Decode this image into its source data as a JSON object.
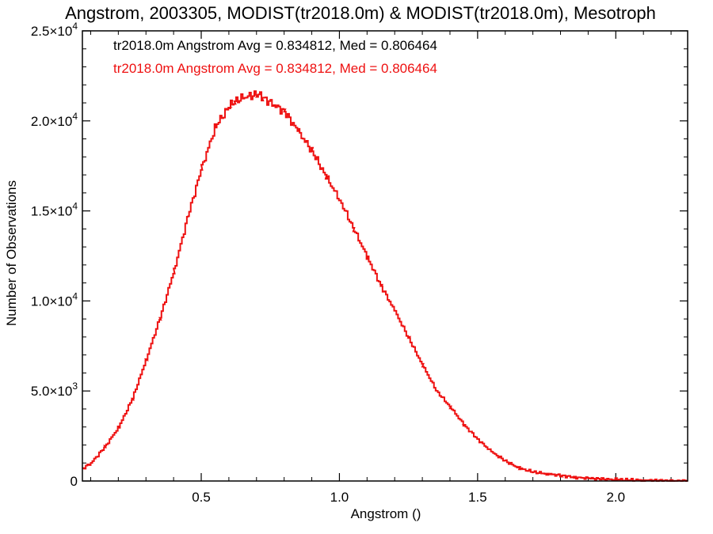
{
  "chart_data": {
    "type": "line",
    "step": true,
    "title": "Angstrom, 2003305, MODIST(tr2018.0m) & MODIST(tr2018.0m), Mesotroph",
    "xlabel": "Angstrom ()",
    "ylabel": "Number of Observations",
    "xlim": [
      0.07,
      2.26
    ],
    "ylim": [
      0,
      25000
    ],
    "x_ticks": [
      {
        "value": 0.5,
        "label": "0.5"
      },
      {
        "value": 1.0,
        "label": "1.0"
      },
      {
        "value": 1.5,
        "label": "1.5"
      },
      {
        "value": 2.0,
        "label": "2.0"
      }
    ],
    "y_ticks": [
      {
        "value": 0,
        "mant": "0",
        "exp": ""
      },
      {
        "value": 5000,
        "mant": "5.0×10",
        "exp": "3"
      },
      {
        "value": 10000,
        "mant": "1.0×10",
        "exp": "4"
      },
      {
        "value": 15000,
        "mant": "1.5×10",
        "exp": "4"
      },
      {
        "value": 20000,
        "mant": "2.0×10",
        "exp": "4"
      },
      {
        "value": 25000,
        "mant": "2.5×10",
        "exp": "4"
      }
    ],
    "annotations": [
      {
        "text": "tr2018.0m Angstrom Avg = 0.834812, Med = 0.806464",
        "color": "#000000"
      },
      {
        "text": "tr2018.0m Angstrom Avg = 0.834812, Med = 0.806464",
        "color": "#ee1111"
      }
    ],
    "series": [
      {
        "color": "#ee1111",
        "x": [
          0.07,
          0.1,
          0.15,
          0.2,
          0.25,
          0.3,
          0.35,
          0.4,
          0.45,
          0.5,
          0.55,
          0.6,
          0.62,
          0.65,
          0.68,
          0.7,
          0.72,
          0.75,
          0.8,
          0.85,
          0.9,
          0.95,
          1.0,
          1.05,
          1.1,
          1.15,
          1.2,
          1.25,
          1.3,
          1.35,
          1.4,
          1.45,
          1.5,
          1.55,
          1.6,
          1.65,
          1.7,
          1.75,
          1.8,
          1.85,
          1.9,
          1.95,
          2.0,
          2.05,
          2.1,
          2.15,
          2.2,
          2.26
        ],
        "y": [
          700,
          1000,
          1900,
          3000,
          4600,
          6800,
          9100,
          11700,
          14700,
          17400,
          19700,
          20800,
          21100,
          21300,
          21400,
          21500,
          21300,
          21000,
          20500,
          19400,
          18300,
          16900,
          15600,
          14000,
          12400,
          10800,
          9400,
          7900,
          6400,
          5000,
          4100,
          3100,
          2300,
          1600,
          1100,
          700,
          500,
          400,
          300,
          200,
          150,
          100,
          80,
          60,
          40,
          25,
          10,
          0
        ]
      }
    ]
  }
}
